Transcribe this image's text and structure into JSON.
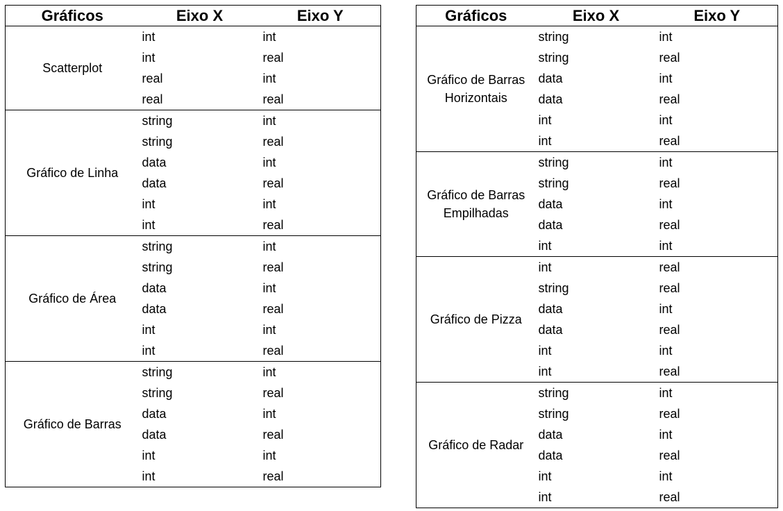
{
  "headers": {
    "chart": "Gráficos",
    "x": "Eixo X",
    "y": "Eixo Y"
  },
  "left_table": [
    {
      "type": "Scatterplot",
      "rows": [
        [
          "int",
          "int"
        ],
        [
          "int",
          "real"
        ],
        [
          "real",
          "int"
        ],
        [
          "real",
          "real"
        ]
      ]
    },
    {
      "type": "Gráfico de Linha",
      "rows": [
        [
          "string",
          "int"
        ],
        [
          "string",
          "real"
        ],
        [
          "data",
          "int"
        ],
        [
          "data",
          "real"
        ],
        [
          "int",
          "int"
        ],
        [
          "int",
          "real"
        ]
      ]
    },
    {
      "type": "Gráfico de Área",
      "rows": [
        [
          "string",
          "int"
        ],
        [
          "string",
          "real"
        ],
        [
          "data",
          "int"
        ],
        [
          "data",
          "real"
        ],
        [
          "int",
          "int"
        ],
        [
          "int",
          "real"
        ]
      ]
    },
    {
      "type": "Gráfico de Barras",
      "rows": [
        [
          "string",
          "int"
        ],
        [
          "string",
          "real"
        ],
        [
          "data",
          "int"
        ],
        [
          "data",
          "real"
        ],
        [
          "int",
          "int"
        ],
        [
          "int",
          "real"
        ]
      ]
    }
  ],
  "right_table": [
    {
      "type": "Gráfico de Barras Horizontais",
      "rows": [
        [
          "string",
          "int"
        ],
        [
          "string",
          "real"
        ],
        [
          "data",
          "int"
        ],
        [
          "data",
          "real"
        ],
        [
          "int",
          "int"
        ],
        [
          "int",
          "real"
        ]
      ]
    },
    {
      "type": "Gráfico de Barras Empilhadas",
      "rows": [
        [
          "string",
          "int"
        ],
        [
          "string",
          "real"
        ],
        [
          "data",
          "int"
        ],
        [
          "data",
          "real"
        ],
        [
          "int",
          "int"
        ]
      ]
    },
    {
      "type": "Gráfico de Pizza",
      "rows": [
        [
          "int",
          "real"
        ],
        [
          "string",
          "real"
        ],
        [
          "data",
          "int"
        ],
        [
          "data",
          "real"
        ],
        [
          "int",
          "int"
        ],
        [
          "int",
          "real"
        ]
      ]
    },
    {
      "type": "Gráfico de Radar",
      "rows": [
        [
          "string",
          "int"
        ],
        [
          "string",
          "real"
        ],
        [
          "data",
          "int"
        ],
        [
          "data",
          "real"
        ],
        [
          "int",
          "int"
        ],
        [
          "int",
          "real"
        ]
      ]
    }
  ]
}
